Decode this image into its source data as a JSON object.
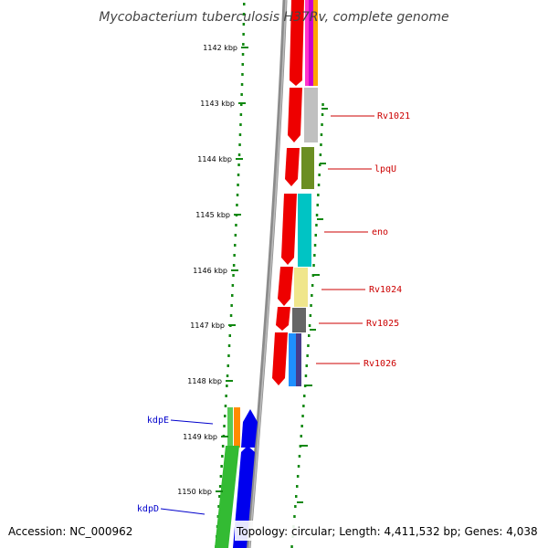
{
  "title": "Mycobacterium tuberculosis H37Rv, complete genome",
  "accession": "Accession: NC_000962",
  "topology": "Topology: circular; Length: 4,411,532 bp; Genes: 4,038",
  "colors": {
    "backbone": "#8c8c8c",
    "dots": "#118811",
    "cds_forward": "#ee0000",
    "cds_reverse": "#0000ee",
    "label_right": "#cc0000",
    "label_left": "#0000cc"
  },
  "ticks": [
    "1142 kbp",
    "1143 kbp",
    "1144 kbp",
    "1145 kbp",
    "1146 kbp",
    "1147 kbp",
    "1148 kbp",
    "1149 kbp",
    "1150 kbp"
  ],
  "gene_labels": [
    {
      "name": "Rv1021",
      "side": "right"
    },
    {
      "name": "lpqU",
      "side": "right"
    },
    {
      "name": "eno",
      "side": "right"
    },
    {
      "name": "Rv1024",
      "side": "right"
    },
    {
      "name": "Rv1025",
      "side": "right"
    },
    {
      "name": "Rv1026",
      "side": "right"
    },
    {
      "name": "kdpE",
      "side": "left"
    },
    {
      "name": "kdpD",
      "side": "left"
    }
  ]
}
